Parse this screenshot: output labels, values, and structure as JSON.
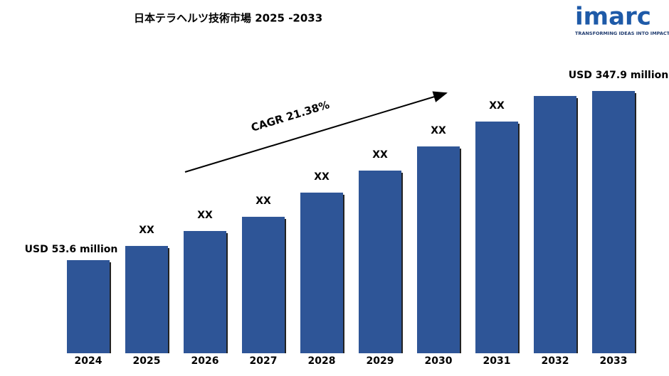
{
  "chart_data": {
    "type": "bar",
    "title": "日本テラヘルツ技術市場  2025 -2033",
    "annotation": "CAGR 21.38%",
    "categories": [
      "2024",
      "2025",
      "2026",
      "2027",
      "2028",
      "2029",
      "2030",
      "2031",
      "2032",
      "2033"
    ],
    "values": [
      53.6,
      78.3,
      104.3,
      129.0,
      171.1,
      209.4,
      251.4,
      294.7,
      339.2,
      347.9
    ],
    "value_labels": [
      "USD 53.6 million",
      "XX",
      "XX",
      "XX",
      "XX",
      "XX",
      "XX",
      "XX",
      null,
      "USD 347.9 million"
    ],
    "color": "#2e5597"
  },
  "logo": {
    "text": "imarc",
    "tagline": "TRANSFORMING IDEAS INTO IMPACT"
  }
}
